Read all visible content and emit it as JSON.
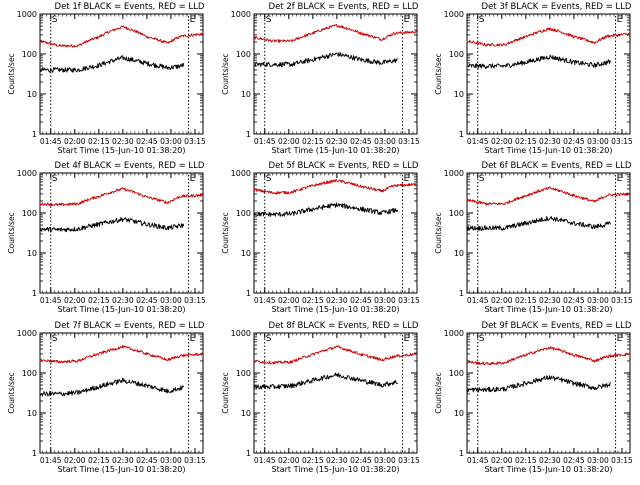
{
  "chart_data": [
    {
      "type": "line",
      "title": "Det 1f BLACK = Events, RED = LLD",
      "xlabel": "Start Time (15-Jun-10 01:38:20)",
      "ylabel": "Counts/sec",
      "x_tick_labels": [
        "01:45",
        "02:00",
        "02:15",
        "02:30",
        "02:45",
        "03:00",
        "03:15"
      ],
      "x_tick_minutes": [
        105,
        120,
        135,
        150,
        165,
        180,
        195
      ],
      "xlim_minutes": [
        98.3,
        200
      ],
      "y_tick_labels": [
        "1",
        "10",
        "100",
        "1000"
      ],
      "ylim": [
        1,
        1000
      ],
      "yscale": "log",
      "markers": [
        {
          "label": "S",
          "x": 105
        },
        {
          "label": "E",
          "x": 191
        }
      ],
      "series": [
        {
          "color": "#cc0000",
          "x": [
            98,
            110,
            122,
            135,
            150,
            165,
            178,
            186,
            200
          ],
          "values": [
            210,
            160,
            160,
            265,
            480,
            270,
            185,
            275,
            320
          ]
        },
        {
          "color": "#000000",
          "x": [
            98,
            110,
            122,
            135,
            150,
            165,
            178,
            186,
            188
          ],
          "values": [
            40,
            40,
            40,
            52,
            80,
            58,
            45,
            50,
            53
          ]
        }
      ]
    },
    {
      "type": "line",
      "title": "Det 2f BLACK = Events, RED = LLD",
      "xlabel": "Start Time (15-Jun-10 01:38:20)",
      "ylabel": "Counts/sec",
      "x_tick_labels": [
        "01:45",
        "02:00",
        "02:15",
        "02:30",
        "02:45",
        "03:00",
        "03:15"
      ],
      "x_tick_minutes": [
        105,
        120,
        135,
        150,
        165,
        180,
        195
      ],
      "xlim_minutes": [
        98.3,
        200
      ],
      "y_tick_labels": [
        "1",
        "10",
        "100",
        "1000"
      ],
      "ylim": [
        1,
        1000
      ],
      "yscale": "log",
      "markers": [
        {
          "label": "S",
          "x": 105
        },
        {
          "label": "E",
          "x": 191
        }
      ],
      "series": [
        {
          "color": "#cc0000",
          "x": [
            98,
            110,
            122,
            135,
            150,
            165,
            178,
            186,
            200
          ],
          "values": [
            260,
            210,
            210,
            330,
            520,
            330,
            230,
            330,
            360
          ]
        },
        {
          "color": "#000000",
          "x": [
            98,
            110,
            122,
            135,
            150,
            165,
            178,
            186,
            188
          ],
          "values": [
            55,
            55,
            55,
            72,
            100,
            72,
            60,
            68,
            70
          ]
        }
      ]
    },
    {
      "type": "line",
      "title": "Det 3f BLACK = Events, RED = LLD",
      "xlabel": "Start Time (15-Jun-10 01:38:20)",
      "ylabel": "Counts/sec",
      "x_tick_labels": [
        "01:45",
        "02:00",
        "02:15",
        "02:30",
        "02:45",
        "03:00",
        "03:15"
      ],
      "x_tick_minutes": [
        105,
        120,
        135,
        150,
        165,
        180,
        195
      ],
      "xlim_minutes": [
        98.3,
        200
      ],
      "y_tick_labels": [
        "1",
        "10",
        "100",
        "1000"
      ],
      "ylim": [
        1,
        1000
      ],
      "yscale": "log",
      "markers": [
        {
          "label": "S",
          "x": 105
        },
        {
          "label": "E",
          "x": 191
        }
      ],
      "series": [
        {
          "color": "#cc0000",
          "x": [
            98,
            110,
            122,
            135,
            150,
            165,
            178,
            186,
            200
          ],
          "values": [
            210,
            170,
            170,
            270,
            430,
            270,
            190,
            280,
            320
          ]
        },
        {
          "color": "#000000",
          "x": [
            98,
            110,
            122,
            135,
            150,
            165,
            178,
            186,
            188
          ],
          "values": [
            50,
            50,
            50,
            62,
            85,
            62,
            52,
            62,
            65
          ]
        }
      ]
    },
    {
      "type": "line",
      "title": "Det 4f BLACK = Events, RED = LLD",
      "xlabel": "Start Time (15-Jun-10 01:38:20)",
      "ylabel": "Counts/sec",
      "x_tick_labels": [
        "01:45",
        "02:00",
        "02:15",
        "02:30",
        "02:45",
        "03:00",
        "03:15"
      ],
      "x_tick_minutes": [
        105,
        120,
        135,
        150,
        165,
        180,
        195
      ],
      "xlim_minutes": [
        98.3,
        200
      ],
      "y_tick_labels": [
        "1",
        "10",
        "100",
        "1000"
      ],
      "ylim": [
        1,
        1000
      ],
      "yscale": "log",
      "markers": [
        {
          "label": "S",
          "x": 105
        },
        {
          "label": "E",
          "x": 191
        }
      ],
      "series": [
        {
          "color": "#cc0000",
          "x": [
            98,
            110,
            122,
            135,
            150,
            165,
            178,
            186,
            200
          ],
          "values": [
            170,
            160,
            170,
            260,
            400,
            250,
            180,
            260,
            280
          ]
        },
        {
          "color": "#000000",
          "x": [
            98,
            110,
            122,
            135,
            150,
            165,
            178,
            186,
            188
          ],
          "values": [
            40,
            38,
            40,
            52,
            70,
            52,
            42,
            48,
            50
          ]
        }
      ]
    },
    {
      "type": "line",
      "title": "Det 5f BLACK = Events, RED = LLD",
      "xlabel": "Start Time (15-Jun-10 01:38:20)",
      "ylabel": "Counts/sec",
      "x_tick_labels": [
        "01:45",
        "02:00",
        "02:15",
        "02:30",
        "02:45",
        "03:00",
        "03:15"
      ],
      "x_tick_minutes": [
        105,
        120,
        135,
        150,
        165,
        180,
        195
      ],
      "xlim_minutes": [
        98.3,
        200
      ],
      "y_tick_labels": [
        "1",
        "10",
        "100",
        "1000"
      ],
      "ylim": [
        1,
        1000
      ],
      "yscale": "log",
      "markers": [
        {
          "label": "S",
          "x": 105
        },
        {
          "label": "E",
          "x": 191
        }
      ],
      "series": [
        {
          "color": "#cc0000",
          "x": [
            98,
            110,
            122,
            135,
            150,
            165,
            178,
            186,
            200
          ],
          "values": [
            380,
            320,
            330,
            480,
            650,
            460,
            350,
            480,
            520
          ]
        },
        {
          "color": "#000000",
          "x": [
            98,
            110,
            122,
            135,
            150,
            165,
            178,
            186,
            188
          ],
          "values": [
            95,
            92,
            95,
            125,
            160,
            125,
            100,
            115,
            120
          ]
        }
      ]
    },
    {
      "type": "line",
      "title": "Det 6f BLACK = Events, RED = LLD",
      "xlabel": "Start Time (15-Jun-10 01:38:20)",
      "ylabel": "Counts/sec",
      "x_tick_labels": [
        "01:45",
        "02:00",
        "02:15",
        "02:30",
        "02:45",
        "03:00",
        "03:15"
      ],
      "x_tick_minutes": [
        105,
        120,
        135,
        150,
        165,
        180,
        195
      ],
      "xlim_minutes": [
        98.3,
        200
      ],
      "y_tick_labels": [
        "1",
        "10",
        "100",
        "1000"
      ],
      "ylim": [
        1,
        1000
      ],
      "yscale": "log",
      "markers": [
        {
          "label": "S",
          "x": 105
        },
        {
          "label": "E",
          "x": 191
        }
      ],
      "series": [
        {
          "color": "#cc0000",
          "x": [
            98,
            110,
            122,
            135,
            150,
            165,
            178,
            186,
            200
          ],
          "values": [
            210,
            170,
            170,
            270,
            420,
            270,
            190,
            280,
            300
          ]
        },
        {
          "color": "#000000",
          "x": [
            98,
            110,
            122,
            135,
            150,
            165,
            178,
            186,
            188
          ],
          "values": [
            42,
            42,
            42,
            55,
            75,
            55,
            45,
            52,
            55
          ]
        }
      ]
    },
    {
      "type": "line",
      "title": "Det 7f BLACK = Events, RED = LLD",
      "xlabel": "Start Time (15-Jun-10 01:38:20)",
      "ylabel": "Counts/sec",
      "x_tick_labels": [
        "01:45",
        "02:00",
        "02:15",
        "02:30",
        "02:45",
        "03:00",
        "03:15"
      ],
      "x_tick_minutes": [
        105,
        120,
        135,
        150,
        165,
        180,
        195
      ],
      "xlim_minutes": [
        98.3,
        200
      ],
      "y_tick_labels": [
        "1",
        "10",
        "100",
        "1000"
      ],
      "ylim": [
        1,
        1000
      ],
      "yscale": "log",
      "markers": [
        {
          "label": "S",
          "x": 105
        },
        {
          "label": "E",
          "x": 191
        }
      ],
      "series": [
        {
          "color": "#cc0000",
          "x": [
            98,
            110,
            122,
            135,
            150,
            165,
            178,
            186,
            200
          ],
          "values": [
            210,
            190,
            200,
            300,
            450,
            300,
            210,
            270,
            300
          ]
        },
        {
          "color": "#000000",
          "x": [
            98,
            110,
            122,
            135,
            150,
            165,
            178,
            186,
            188
          ],
          "values": [
            30,
            30,
            32,
            45,
            65,
            48,
            35,
            42,
            45
          ]
        }
      ]
    },
    {
      "type": "line",
      "title": "Det 8f BLACK = Events, RED = LLD",
      "xlabel": "Start Time (15-Jun-10 01:38:20)",
      "ylabel": "Counts/sec",
      "x_tick_labels": [
        "01:45",
        "02:00",
        "02:15",
        "02:30",
        "02:45",
        "03:00",
        "03:15"
      ],
      "x_tick_minutes": [
        105,
        120,
        135,
        150,
        165,
        180,
        195
      ],
      "xlim_minutes": [
        98.3,
        200
      ],
      "y_tick_labels": [
        "1",
        "10",
        "100",
        "1000"
      ],
      "ylim": [
        1,
        1000
      ],
      "yscale": "log",
      "markers": [
        {
          "label": "S",
          "x": 105
        },
        {
          "label": "E",
          "x": 191
        }
      ],
      "series": [
        {
          "color": "#cc0000",
          "x": [
            98,
            110,
            122,
            135,
            150,
            165,
            178,
            186,
            200
          ],
          "values": [
            200,
            180,
            190,
            290,
            450,
            290,
            210,
            260,
            300
          ]
        },
        {
          "color": "#000000",
          "x": [
            98,
            110,
            122,
            135,
            150,
            165,
            178,
            186,
            188
          ],
          "values": [
            45,
            45,
            48,
            65,
            90,
            65,
            50,
            58,
            60
          ]
        }
      ]
    },
    {
      "type": "line",
      "title": "Det 9f BLACK = Events, RED = LLD",
      "xlabel": "Start Time (15-Jun-10 01:38:20)",
      "ylabel": "Counts/sec",
      "x_tick_labels": [
        "01:45",
        "02:00",
        "02:15",
        "02:30",
        "02:45",
        "03:00",
        "03:15"
      ],
      "x_tick_minutes": [
        105,
        120,
        135,
        150,
        165,
        180,
        195
      ],
      "xlim_minutes": [
        98.3,
        200
      ],
      "y_tick_labels": [
        "1",
        "10",
        "100",
        "1000"
      ],
      "ylim": [
        1,
        1000
      ],
      "yscale": "log",
      "markers": [
        {
          "label": "S",
          "x": 105
        },
        {
          "label": "E",
          "x": 191
        }
      ],
      "series": [
        {
          "color": "#cc0000",
          "x": [
            98,
            110,
            122,
            135,
            150,
            165,
            178,
            186,
            200
          ],
          "values": [
            190,
            170,
            180,
            280,
            430,
            280,
            200,
            260,
            300
          ]
        },
        {
          "color": "#000000",
          "x": [
            98,
            110,
            122,
            135,
            150,
            165,
            178,
            186,
            188
          ],
          "values": [
            38,
            38,
            40,
            55,
            78,
            55,
            42,
            50,
            55
          ]
        }
      ]
    }
  ]
}
